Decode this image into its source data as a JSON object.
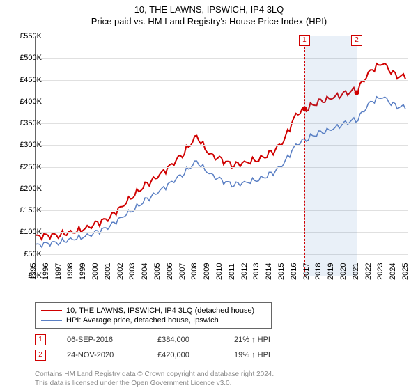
{
  "title": "10, THE LAWNS, IPSWICH, IP4 3LQ",
  "subtitle": "Price paid vs. HM Land Registry's House Price Index (HPI)",
  "chart": {
    "type": "line",
    "x_start_year": 1995,
    "x_end_year": 2025,
    "y_min": 0,
    "y_max": 550,
    "y_tick_step": 50,
    "y_tick_prefix": "£",
    "y_tick_suffix": "K",
    "background_color": "#ffffff",
    "grid_color": "#e0e0e0",
    "axis_color": "#666666",
    "series": [
      {
        "name": "10, THE LAWNS, IPSWICH, IP4 3LQ (detached house)",
        "color": "#d00000",
        "line_width": 2,
        "values_per_year": [
          90,
          92,
          95,
          100,
          108,
          120,
          135,
          160,
          188,
          210,
          232,
          255,
          285,
          320,
          280,
          265,
          255,
          260,
          268,
          280,
          310,
          370,
          388,
          400,
          410,
          418,
          430,
          470,
          490,
          458
        ]
      },
      {
        "name": "HPI: Average price, detached house, Ipswich",
        "color": "#5a7fc4",
        "line_width": 1.5,
        "values_per_year": [
          70,
          74,
          78,
          84,
          90,
          100,
          115,
          135,
          155,
          175,
          195,
          215,
          238,
          262,
          235,
          218,
          210,
          214,
          222,
          232,
          258,
          300,
          318,
          328,
          338,
          350,
          362,
          398,
          412,
          388
        ]
      }
    ],
    "sale_markers": [
      {
        "label": "1",
        "year": 2016.68,
        "price": 384
      },
      {
        "label": "2",
        "year": 2020.9,
        "price": 420
      }
    ],
    "sale_band": {
      "from_year": 2016.68,
      "to_year": 2020.9,
      "fill": "rgba(70,130,200,0.12)"
    }
  },
  "legend": {
    "rows": [
      {
        "color": "#d00000",
        "label": "10, THE LAWNS, IPSWICH, IP4 3LQ (detached house)"
      },
      {
        "color": "#5a7fc4",
        "label": "HPI: Average price, detached house, Ipswich"
      }
    ]
  },
  "sales": [
    {
      "marker": "1",
      "date": "06-SEP-2016",
      "price": "£384,000",
      "delta": "21% ↑ HPI"
    },
    {
      "marker": "2",
      "date": "24-NOV-2020",
      "price": "£420,000",
      "delta": "19% ↑ HPI"
    }
  ],
  "footer": {
    "line1": "Contains HM Land Registry data © Crown copyright and database right 2024.",
    "line2": "This data is licensed under the Open Government Licence v3.0."
  }
}
